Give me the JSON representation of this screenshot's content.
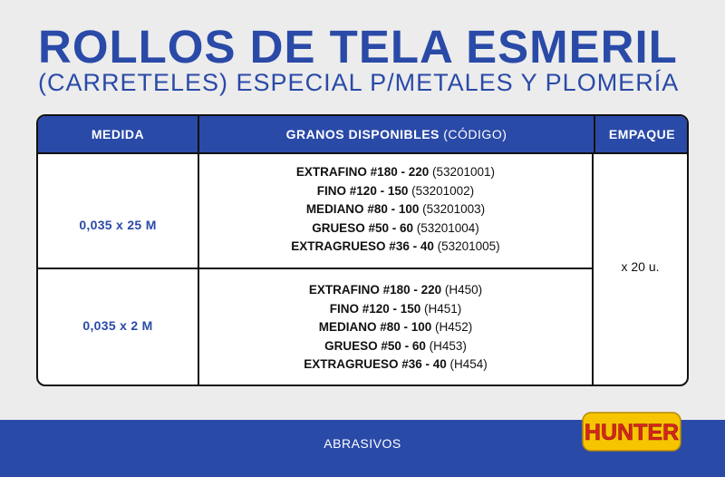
{
  "header": {
    "title": "ROLLOS DE TELA ESMERIL",
    "subtitle": "(CARRETELES) ESPECIAL P/METALES Y PLOMERÍA"
  },
  "table": {
    "headers": {
      "medida": "MEDIDA",
      "granos_bold": "GRANOS DISPONIBLES",
      "granos_light": "(CÓDIGO)",
      "empaque": "EMPAQUE"
    },
    "groups": [
      {
        "medida": "0,035 x 25 M",
        "grains": [
          {
            "name": "EXTRAFINO #180 - 220",
            "code": "(53201001)"
          },
          {
            "name": "FINO #120 - 150",
            "code": "(53201002)"
          },
          {
            "name": "MEDIANO #80 - 100",
            "code": "(53201003)"
          },
          {
            "name": "GRUESO #50 - 60",
            "code": "(53201004)"
          },
          {
            "name": "EXTRAGRUESO #36 - 40",
            "code": "(53201005)"
          }
        ]
      },
      {
        "medida": "0,035 x 2 M",
        "grains": [
          {
            "name": "EXTRAFINO #180 - 220",
            "code": "(H450)"
          },
          {
            "name": "FINO #120 - 150",
            "code": "(H451)"
          },
          {
            "name": "MEDIANO #80 - 100",
            "code": "(H452)"
          },
          {
            "name": "GRUESO #50 - 60",
            "code": "(H453)"
          },
          {
            "name": "EXTRAGRUESO #36 - 40",
            "code": "(H454)"
          }
        ]
      }
    ],
    "empaque": "x 20 u."
  },
  "footer": {
    "category": "ABRASIVOS",
    "brand": "HUNTER"
  },
  "colors": {
    "brand_blue": "#2a4aa8",
    "logo_yellow": "#f7c500",
    "logo_red": "#d8251d"
  }
}
